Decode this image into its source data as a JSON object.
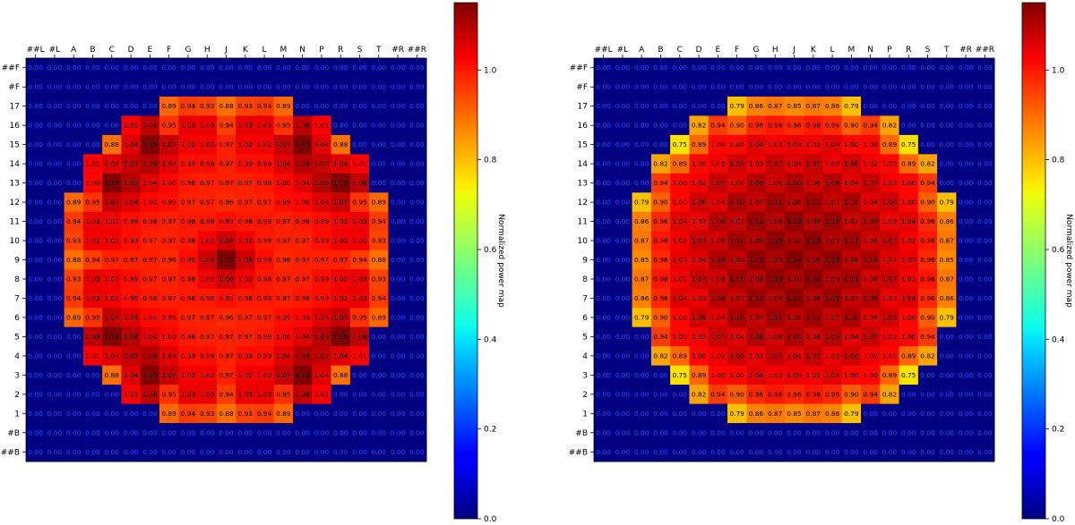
{
  "chart_data": [
    {
      "type": "heatmap",
      "columns": [
        "##L",
        "#L",
        "A",
        "B",
        "C",
        "D",
        "E",
        "F",
        "G",
        "H",
        "J",
        "K",
        "L",
        "M",
        "N",
        "P",
        "R",
        "S",
        "T",
        "#R",
        "##R"
      ],
      "rows": [
        "##F",
        "#F",
        "17",
        "16",
        "15",
        "14",
        "13",
        "12",
        "11",
        "10",
        "9",
        "8",
        "7",
        "6",
        "5",
        "4",
        "3",
        "2",
        "1",
        "#B",
        "##B"
      ],
      "colorbar": {
        "label": "Normalized power map",
        "range": [
          0.0,
          1.15
        ],
        "ticks": [
          0.0,
          0.2,
          0.4,
          0.6,
          0.8,
          1.0
        ],
        "colormap": "jet"
      },
      "values": [
        [
          0,
          0,
          0,
          0,
          0,
          0,
          0,
          0,
          0,
          0,
          0,
          0,
          0,
          0,
          0,
          0,
          0,
          0,
          0,
          0,
          0
        ],
        [
          0,
          0,
          0,
          0,
          0,
          0,
          0,
          0,
          0,
          0,
          0,
          0,
          0,
          0,
          0,
          0,
          0,
          0,
          0,
          0,
          0
        ],
        [
          0,
          0,
          0,
          0,
          0,
          0,
          0,
          0.89,
          0.94,
          0.93,
          0.88,
          0.93,
          0.94,
          0.89,
          0,
          0,
          0,
          0,
          0,
          0,
          0
        ],
        [
          0,
          0,
          0,
          0,
          0,
          1.01,
          1.08,
          0.95,
          1.03,
          1.03,
          0.94,
          1.03,
          1.03,
          0.95,
          1.08,
          1.01,
          0,
          0,
          0,
          0,
          0
        ],
        [
          0,
          0,
          0,
          0,
          0.88,
          1.04,
          1.15,
          1.07,
          1.02,
          1.02,
          0.97,
          1.02,
          1.02,
          1.07,
          1.15,
          1.04,
          0.88,
          0,
          0,
          0,
          0
        ],
        [
          0,
          0,
          0,
          1.01,
          1.04,
          1.07,
          1.09,
          1.04,
          0.99,
          0.99,
          0.97,
          0.99,
          0.99,
          1.04,
          1.09,
          1.07,
          1.04,
          1.01,
          0,
          0,
          0
        ],
        [
          0,
          0,
          0,
          1.0,
          1.15,
          1.09,
          1.04,
          1.0,
          0.98,
          0.97,
          0.97,
          0.97,
          0.98,
          1.0,
          1.04,
          1.09,
          1.15,
          1.08,
          0,
          0,
          0
        ],
        [
          0,
          0,
          0.89,
          0.95,
          1.07,
          1.04,
          1.0,
          0.99,
          0.97,
          0.97,
          0.96,
          0.97,
          0.97,
          0.99,
          1.0,
          1.04,
          1.07,
          0.95,
          0.89,
          0,
          0
        ],
        [
          0,
          0,
          0.94,
          1.03,
          1.02,
          0.99,
          0.98,
          0.97,
          0.98,
          0.98,
          0.99,
          0.98,
          0.98,
          0.97,
          0.98,
          0.99,
          1.02,
          1.03,
          0.94,
          0,
          0
        ],
        [
          0,
          0,
          0.93,
          1.02,
          1.02,
          0.99,
          0.97,
          0.97,
          0.98,
          1.02,
          1.06,
          1.02,
          0.98,
          0.97,
          0.97,
          0.99,
          1.02,
          1.02,
          0.93,
          0,
          0
        ],
        [
          0,
          0,
          0.88,
          0.94,
          0.97,
          0.97,
          0.97,
          0.96,
          0.99,
          1.06,
          1.15,
          1.06,
          0.99,
          0.96,
          0.97,
          0.97,
          0.97,
          0.94,
          0.88,
          0,
          0
        ],
        [
          0,
          0,
          0.93,
          1.03,
          1.02,
          0.99,
          0.97,
          0.97,
          0.98,
          1.02,
          1.06,
          1.02,
          0.98,
          0.97,
          0.97,
          0.99,
          1.02,
          1.03,
          0.93,
          0,
          0
        ],
        [
          0,
          0,
          0.94,
          1.03,
          1.02,
          0.99,
          0.98,
          0.97,
          0.98,
          0.98,
          0.99,
          0.98,
          0.98,
          0.97,
          0.98,
          0.99,
          1.02,
          1.03,
          0.94,
          0,
          0
        ],
        [
          0,
          0,
          0.89,
          0.95,
          1.07,
          1.04,
          1.0,
          0.99,
          0.97,
          0.97,
          0.96,
          0.97,
          0.97,
          0.99,
          1.0,
          1.04,
          1.07,
          0.95,
          0.89,
          0,
          0
        ],
        [
          0,
          0,
          0,
          1.08,
          1.15,
          1.09,
          1.04,
          1.0,
          0.98,
          0.97,
          0.97,
          0.97,
          0.98,
          1.0,
          1.04,
          1.09,
          1.15,
          1.08,
          0,
          0,
          0
        ],
        [
          0,
          0,
          0,
          1.01,
          1.04,
          1.07,
          1.09,
          1.04,
          0.99,
          0.99,
          0.97,
          0.99,
          0.99,
          1.04,
          1.09,
          1.07,
          1.04,
          1.01,
          0,
          0,
          0
        ],
        [
          0,
          0,
          0,
          0,
          0.88,
          1.04,
          1.15,
          1.07,
          1.02,
          1.02,
          0.97,
          1.02,
          1.02,
          1.07,
          1.15,
          1.04,
          0.88,
          0,
          0,
          0,
          0
        ],
        [
          0,
          0,
          0,
          0,
          0,
          1.01,
          1.08,
          0.95,
          1.03,
          1.03,
          0.94,
          1.03,
          1.03,
          0.95,
          1.08,
          1.01,
          0,
          0,
          0,
          0,
          0
        ],
        [
          0,
          0,
          0,
          0,
          0,
          0,
          0,
          0.89,
          0.94,
          0.93,
          0.88,
          0.93,
          0.94,
          0.89,
          0,
          0,
          0,
          0,
          0,
          0,
          0
        ],
        [
          0,
          0,
          0,
          0,
          0,
          0,
          0,
          0,
          0,
          0,
          0,
          0,
          0,
          0,
          0,
          0,
          0,
          0,
          0,
          0,
          0
        ],
        [
          0,
          0,
          0,
          0,
          0,
          0,
          0,
          0,
          0,
          0,
          0,
          0,
          0,
          0,
          0,
          0,
          0,
          0,
          0,
          0,
          0
        ]
      ]
    },
    {
      "type": "heatmap",
      "columns": [
        "##L",
        "#L",
        "A",
        "B",
        "C",
        "D",
        "E",
        "F",
        "G",
        "H",
        "J",
        "K",
        "L",
        "M",
        "N",
        "P",
        "R",
        "S",
        "T",
        "#R",
        "##R"
      ],
      "rows": [
        "##F",
        "#F",
        "17",
        "16",
        "15",
        "14",
        "13",
        "12",
        "11",
        "10",
        "9",
        "8",
        "7",
        "6",
        "5",
        "4",
        "3",
        "2",
        "1",
        "#B",
        "##B"
      ],
      "colorbar": {
        "label": "Normalized power map",
        "range": [
          0.0,
          1.15
        ],
        "ticks": [
          0.0,
          0.2,
          0.4,
          0.6,
          0.8,
          1.0
        ],
        "colormap": "jet"
      },
      "values": [
        [
          0,
          0,
          0,
          0,
          0,
          0,
          0,
          0,
          0,
          0,
          0,
          0,
          0,
          0,
          0,
          0,
          0,
          0,
          0,
          0,
          0
        ],
        [
          0,
          0,
          0,
          0,
          0,
          0,
          0,
          0,
          0,
          0,
          0,
          0,
          0,
          0,
          0,
          0,
          0,
          0,
          0,
          0,
          0
        ],
        [
          0,
          0,
          0,
          0,
          0,
          0,
          0,
          0.79,
          0.86,
          0.87,
          0.85,
          0.87,
          0.86,
          0.79,
          0,
          0,
          0,
          0,
          0,
          0,
          0
        ],
        [
          0,
          0,
          0,
          0,
          0,
          0.82,
          0.94,
          0.9,
          0.96,
          0.98,
          0.96,
          0.98,
          0.96,
          0.9,
          0.94,
          0.82,
          0,
          0,
          0,
          0,
          0
        ],
        [
          0,
          0,
          0,
          0,
          0.75,
          0.89,
          1.0,
          1.0,
          1.04,
          1.02,
          1.03,
          1.02,
          1.04,
          1.0,
          1.0,
          0.89,
          0.75,
          0,
          0,
          0,
          0
        ],
        [
          0,
          0,
          0,
          0.82,
          0.89,
          1.0,
          1.02,
          1.06,
          1.03,
          1.07,
          1.04,
          1.07,
          1.03,
          1.06,
          1.02,
          1.0,
          0.89,
          0.82,
          0,
          0,
          0
        ],
        [
          0,
          0,
          0,
          0.94,
          1.0,
          1.02,
          1.07,
          1.04,
          1.09,
          1.06,
          1.1,
          1.06,
          1.09,
          1.04,
          1.07,
          1.02,
          1.0,
          0.94,
          0,
          0,
          0
        ],
        [
          0,
          0,
          0.79,
          0.9,
          1.0,
          1.06,
          1.04,
          1.1,
          1.07,
          1.11,
          1.08,
          1.11,
          1.07,
          1.1,
          1.04,
          1.06,
          1.0,
          0.9,
          0.79,
          0,
          0
        ],
        [
          0,
          0,
          0.86,
          0.96,
          1.04,
          1.03,
          1.09,
          1.07,
          1.12,
          1.09,
          1.13,
          1.09,
          1.12,
          1.07,
          1.09,
          1.03,
          1.04,
          0.96,
          0.86,
          0,
          0
        ],
        [
          0,
          0,
          0.87,
          0.98,
          1.02,
          1.07,
          1.06,
          1.11,
          1.09,
          1.13,
          1.1,
          1.13,
          1.09,
          1.11,
          1.06,
          1.07,
          1.02,
          0.98,
          0.87,
          0,
          0
        ],
        [
          0,
          0,
          0.85,
          0.96,
          1.03,
          1.04,
          1.1,
          1.08,
          1.13,
          1.1,
          1.14,
          1.1,
          1.13,
          1.08,
          1.1,
          1.04,
          1.03,
          0.96,
          0.85,
          0,
          0
        ],
        [
          0,
          0,
          0.87,
          0.98,
          1.02,
          1.07,
          1.06,
          1.11,
          1.09,
          1.13,
          1.1,
          1.13,
          1.09,
          1.11,
          1.06,
          1.07,
          1.02,
          0.98,
          0.87,
          0,
          0
        ],
        [
          0,
          0,
          0.86,
          0.96,
          1.04,
          1.03,
          1.09,
          1.07,
          1.12,
          1.09,
          1.13,
          1.09,
          1.12,
          1.07,
          1.09,
          1.03,
          1.04,
          0.96,
          0.86,
          0,
          0
        ],
        [
          0,
          0,
          0.79,
          0.9,
          1.0,
          1.06,
          1.04,
          1.1,
          1.07,
          1.11,
          1.08,
          1.11,
          1.07,
          1.1,
          1.04,
          1.06,
          1.0,
          0.9,
          0.79,
          0,
          0
        ],
        [
          0,
          0,
          0,
          0.94,
          1.0,
          1.02,
          1.07,
          1.04,
          1.09,
          1.06,
          1.1,
          1.06,
          1.09,
          1.04,
          1.07,
          1.02,
          1.0,
          0.94,
          0,
          0,
          0
        ],
        [
          0,
          0,
          0,
          0.82,
          0.89,
          1.0,
          1.02,
          1.06,
          1.03,
          1.07,
          1.04,
          1.07,
          1.03,
          1.06,
          1.02,
          1.0,
          0.89,
          0.82,
          0,
          0,
          0
        ],
        [
          0,
          0,
          0,
          0,
          0.75,
          0.89,
          1.0,
          1.0,
          1.04,
          1.02,
          1.03,
          1.02,
          1.04,
          1.0,
          1.0,
          0.89,
          0.75,
          0,
          0,
          0,
          0
        ],
        [
          0,
          0,
          0,
          0,
          0,
          0.82,
          0.94,
          0.9,
          0.96,
          0.98,
          0.96,
          0.98,
          0.96,
          0.9,
          0.94,
          0.82,
          0,
          0,
          0,
          0,
          0
        ],
        [
          0,
          0,
          0,
          0,
          0,
          0,
          0,
          0.79,
          0.86,
          0.87,
          0.85,
          0.87,
          0.86,
          0.79,
          0,
          0,
          0,
          0,
          0,
          0,
          0
        ],
        [
          0,
          0,
          0,
          0,
          0,
          0,
          0,
          0,
          0,
          0,
          0,
          0,
          0,
          0,
          0,
          0,
          0,
          0,
          0,
          0,
          0
        ],
        [
          0,
          0,
          0,
          0,
          0,
          0,
          0,
          0,
          0,
          0,
          0,
          0,
          0,
          0,
          0,
          0,
          0,
          0,
          0,
          0,
          0
        ]
      ]
    }
  ]
}
